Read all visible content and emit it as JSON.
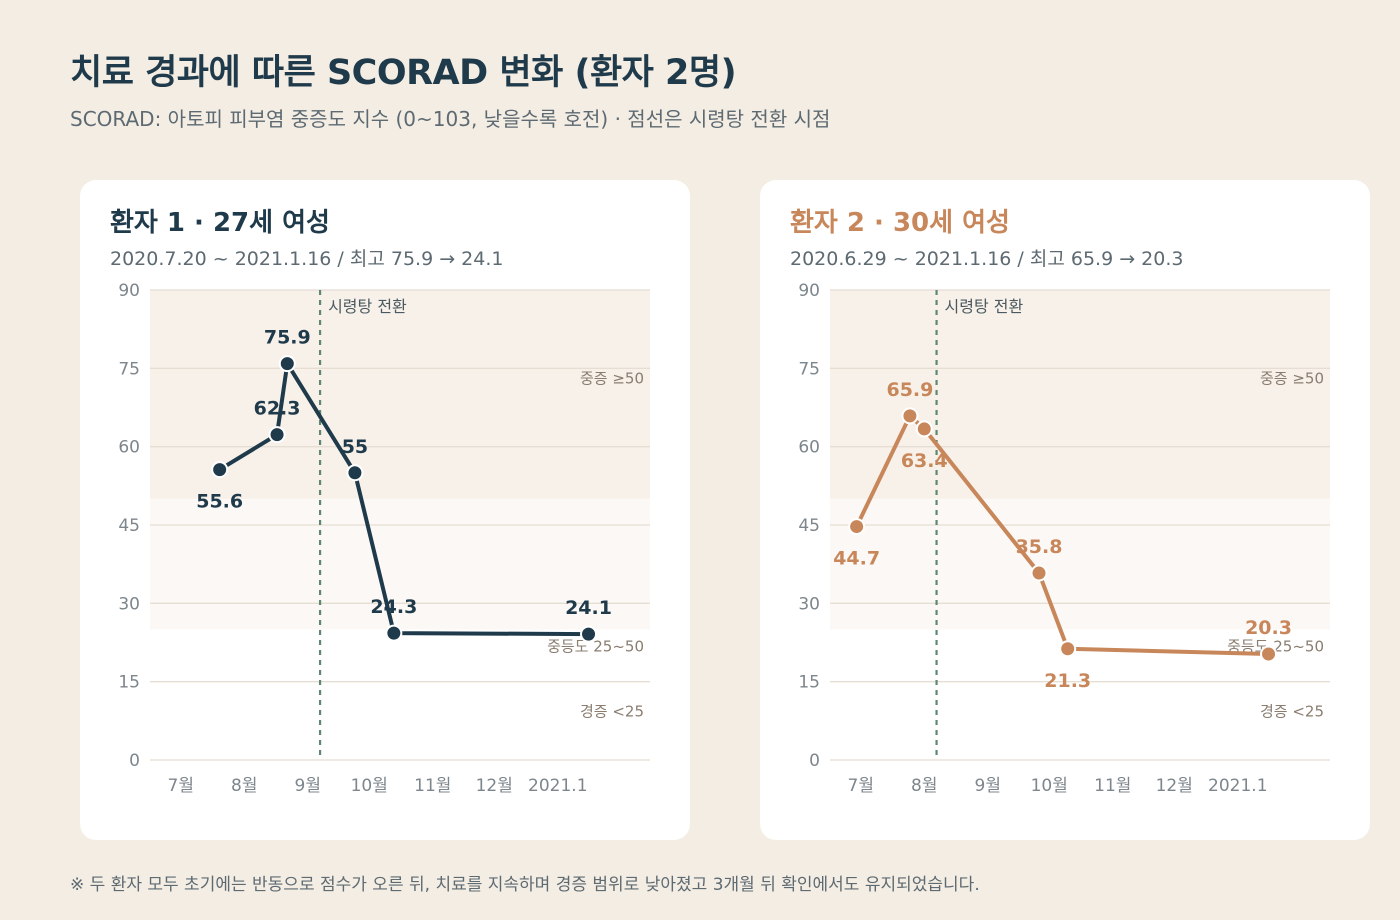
{
  "page": {
    "title": "치료 경과에 따른 SCORAD 변화 (환자 2명)",
    "subtitle": "SCORAD: 아토피 피부염 중증도 지수 (0~103, 낮을수록 호전) · 점선은 시령탕 전환 시점",
    "footnote": "※ 두 환자 모두 초기에는 반동으로 점수가 오른 뒤, 치료를 지속하며 경증 범위로 낮아졌고 3개월 뒤 확인에서도 유지되었습니다."
  },
  "colors": {
    "background": "#f4ede4",
    "patient1": "#1f3a4a",
    "patient2": "#c8875a",
    "switch_line": "#5e8872",
    "severe_band": "#f7f1ea",
    "moderate_band": "#fbf8f5"
  },
  "chart_data": [
    {
      "type": "line",
      "title": "환자 1 · 27세 여성",
      "subtitle": "2020.7.20 ~ 2021.1.16 / 최고 75.9 → 24.1",
      "color": "#1f3a4a",
      "ylim": [
        0,
        90
      ],
      "yticks": [
        0,
        15,
        30,
        45,
        60,
        75,
        90
      ],
      "xlim": [
        "2020-06-16",
        "2021-02-15"
      ],
      "xticks": [
        {
          "label": "7월",
          "date": "2020-07-01"
        },
        {
          "label": "8월",
          "date": "2020-08-01"
        },
        {
          "label": "9월",
          "date": "2020-09-01"
        },
        {
          "label": "10월",
          "date": "2020-10-01"
        },
        {
          "label": "11월",
          "date": "2020-11-01"
        },
        {
          "label": "12월",
          "date": "2020-12-01"
        },
        {
          "label": "2021.1",
          "date": "2021-01-01"
        }
      ],
      "points": [
        {
          "x": "2020-07-20",
          "y": 55.6,
          "label": "55.6",
          "pos": "below"
        },
        {
          "x": "2020-08-17",
          "y": 62.3,
          "label": "62.3",
          "pos": "above"
        },
        {
          "x": "2020-08-22",
          "y": 75.9,
          "label": "75.9",
          "pos": "above"
        },
        {
          "x": "2020-09-24",
          "y": 55,
          "label": "55",
          "pos": "above"
        },
        {
          "x": "2020-10-13",
          "y": 24.3,
          "label": "24.3",
          "pos": "above"
        },
        {
          "x": "2021-01-16",
          "y": 24.1,
          "label": "24.1",
          "pos": "above"
        }
      ],
      "switch": {
        "x": "2020-09-07",
        "label": "시령탕 전환"
      },
      "bands": [
        {
          "label": "중증 ≥50",
          "from": 50,
          "to": 90
        },
        {
          "label": "중등도 25~50",
          "from": 25,
          "to": 50
        },
        {
          "label": "경증 <25",
          "from": 0,
          "to": 25
        }
      ]
    },
    {
      "type": "line",
      "title": "환자 2 · 30세 여성",
      "subtitle": "2020.6.29 ~ 2021.1.16 / 최고 65.9 → 20.3",
      "color": "#c8875a",
      "ylim": [
        0,
        90
      ],
      "yticks": [
        0,
        15,
        30,
        45,
        60,
        75,
        90
      ],
      "xlim": [
        "2020-06-16",
        "2021-02-15"
      ],
      "xticks": [
        {
          "label": "7월",
          "date": "2020-07-01"
        },
        {
          "label": "8월",
          "date": "2020-08-01"
        },
        {
          "label": "9월",
          "date": "2020-09-01"
        },
        {
          "label": "10월",
          "date": "2020-10-01"
        },
        {
          "label": "11월",
          "date": "2020-11-01"
        },
        {
          "label": "12월",
          "date": "2020-12-01"
        },
        {
          "label": "2021.1",
          "date": "2021-01-01"
        }
      ],
      "points": [
        {
          "x": "2020-06-29",
          "y": 44.7,
          "label": "44.7",
          "pos": "below"
        },
        {
          "x": "2020-07-25",
          "y": 65.9,
          "label": "65.9",
          "pos": "above"
        },
        {
          "x": "2020-08-01",
          "y": 63.4,
          "label": "63.4",
          "pos": "below"
        },
        {
          "x": "2020-09-26",
          "y": 35.8,
          "label": "35.8",
          "pos": "above"
        },
        {
          "x": "2020-10-10",
          "y": 21.3,
          "label": "21.3",
          "pos": "below"
        },
        {
          "x": "2021-01-16",
          "y": 20.3,
          "label": "20.3",
          "pos": "above"
        }
      ],
      "switch": {
        "x": "2020-08-07",
        "label": "시령탕 전환"
      },
      "bands": [
        {
          "label": "중증 ≥50",
          "from": 50,
          "to": 90
        },
        {
          "label": "중등도 25~50",
          "from": 25,
          "to": 50
        },
        {
          "label": "경증 <25",
          "from": 0,
          "to": 25
        }
      ]
    }
  ]
}
